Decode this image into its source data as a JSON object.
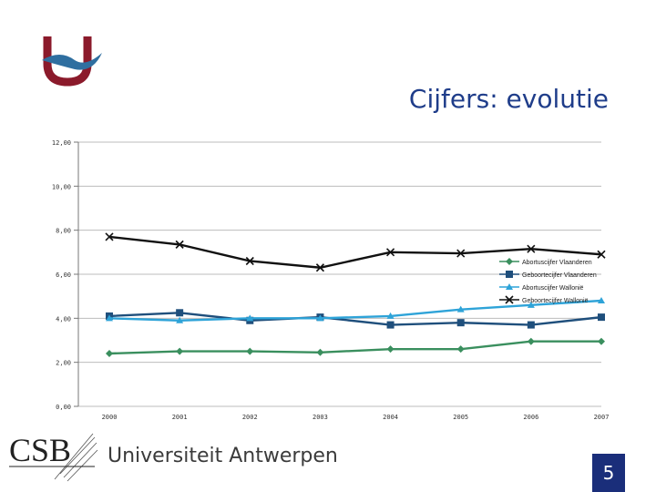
{
  "slide": {
    "title": "Cijfers: evolutie",
    "university": "Universiteit Antwerpen",
    "csb_logo_text": "CSB",
    "page_number": "5",
    "colors": {
      "navy": "#1a2e7a",
      "logo_red": "#8b1a2b",
      "logo_blue": "#2f6fa0"
    }
  },
  "chart_data": {
    "type": "line",
    "x": [
      "2000",
      "2001",
      "2002",
      "2003",
      "2004",
      "2005",
      "2006",
      "2007"
    ],
    "ylim": [
      0,
      12
    ],
    "yticks": [
      "0,00",
      "2,00",
      "4,00",
      "6,00",
      "8,00",
      "10,00",
      "12,00"
    ],
    "grid": true,
    "legend_position": "right",
    "series": [
      {
        "name": "Abortuscijfer Vlaanderen",
        "color": "#3a8f5e",
        "marker": "diamond",
        "values": [
          2.4,
          2.5,
          2.5,
          2.45,
          2.6,
          2.6,
          2.95,
          2.95
        ]
      },
      {
        "name": "Geboortecijfer Vlaanderen",
        "color": "#1f4f7c",
        "marker": "square",
        "values": [
          4.1,
          4.25,
          3.9,
          4.05,
          3.7,
          3.8,
          3.7,
          4.05
        ]
      },
      {
        "name": "Abortuscijfer Wallonië",
        "color": "#2ea3d8",
        "marker": "triangle",
        "values": [
          4.0,
          3.9,
          4.0,
          4.0,
          4.1,
          4.4,
          4.6,
          4.8
        ]
      },
      {
        "name": "Geboortecijfer Wallonië",
        "color": "#111111",
        "marker": "x",
        "values": [
          7.7,
          7.35,
          6.6,
          6.3,
          7.0,
          6.95,
          7.15,
          6.9
        ]
      }
    ]
  }
}
